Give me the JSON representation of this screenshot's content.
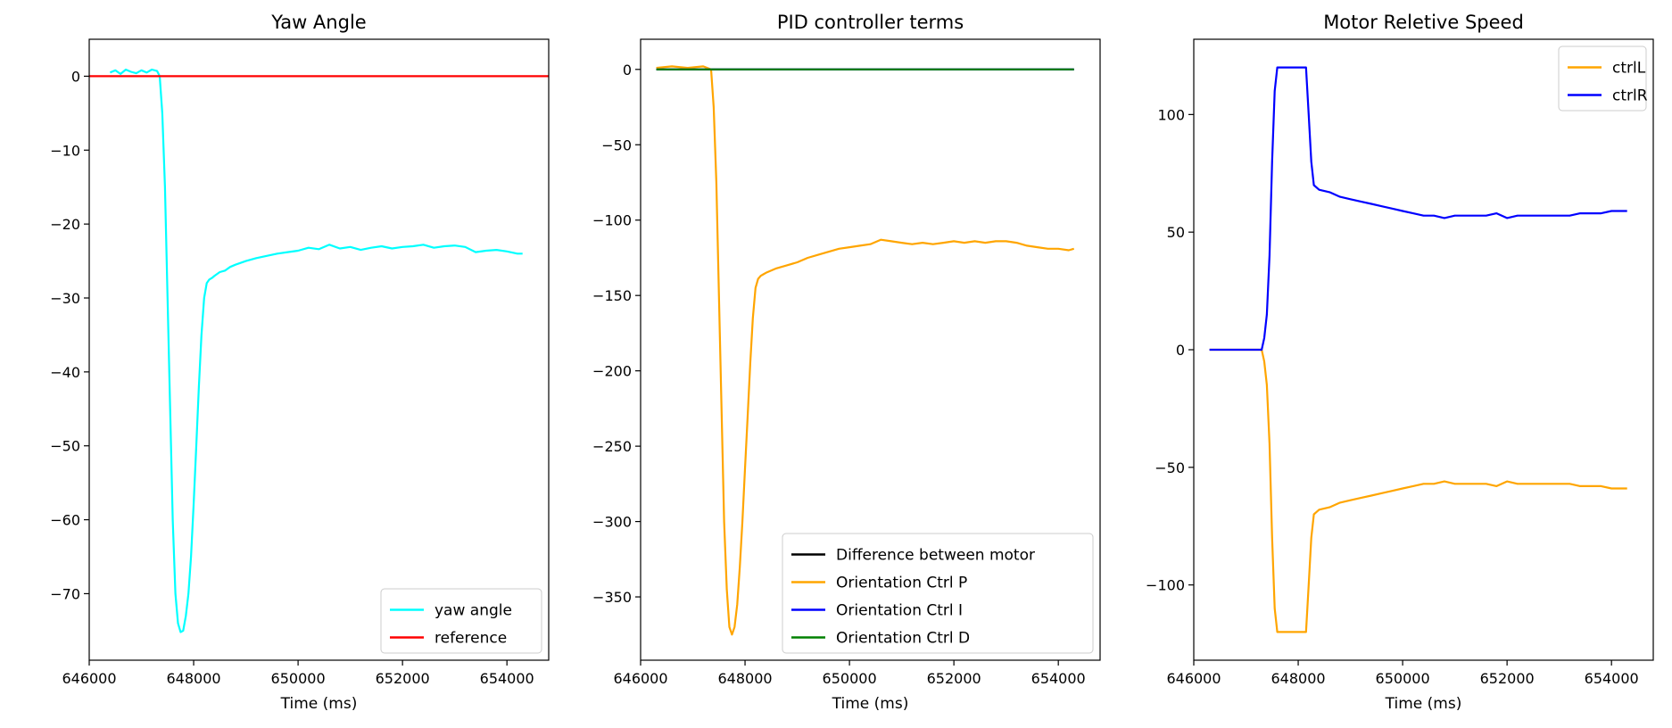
{
  "chart_data": [
    {
      "type": "line",
      "title": "Yaw Angle",
      "xlabel": "Time (ms)",
      "ylabel": "",
      "xlim": [
        646000,
        654800
      ],
      "ylim": [
        -79,
        5
      ],
      "xticks": [
        646000,
        648000,
        650000,
        652000,
        654000
      ],
      "xtick_labels": [
        "646000",
        "648000",
        "650000",
        "652000",
        "654000"
      ],
      "yticks": [
        0,
        -10,
        -20,
        -30,
        -40,
        -50,
        -60,
        -70
      ],
      "ytick_labels": [
        "0",
        "−10",
        "−20",
        "−30",
        "−40",
        "−50",
        "−60",
        "−70"
      ],
      "grid": false,
      "legend": "lower-right",
      "series": [
        {
          "name": "yaw angle",
          "color": "#00ffff",
          "x": [
            646400,
            646500,
            646600,
            646700,
            646800,
            646900,
            647000,
            647100,
            647200,
            647300,
            647350,
            647400,
            647450,
            647500,
            647550,
            647600,
            647650,
            647700,
            647750,
            647800,
            647850,
            647900,
            647950,
            648000,
            648050,
            648100,
            648150,
            648200,
            648250,
            648300,
            648350,
            648400,
            648500,
            648600,
            648700,
            648800,
            649000,
            649200,
            649400,
            649600,
            649800,
            650000,
            650200,
            650400,
            650600,
            650800,
            651000,
            651200,
            651400,
            651600,
            651800,
            652000,
            652200,
            652400,
            652600,
            652800,
            653000,
            653200,
            653400,
            653600,
            653800,
            654000,
            654200,
            654300
          ],
          "y": [
            0.5,
            0.8,
            0.3,
            0.9,
            0.6,
            0.4,
            0.8,
            0.5,
            0.9,
            0.7,
            0,
            -5,
            -15,
            -30,
            -45,
            -60,
            -70,
            -74,
            -75.2,
            -75,
            -73,
            -70,
            -65,
            -58,
            -50,
            -42,
            -35,
            -30,
            -28,
            -27.5,
            -27.3,
            -27,
            -26.5,
            -26.3,
            -25.8,
            -25.5,
            -25,
            -24.6,
            -24.3,
            -24,
            -23.8,
            -23.6,
            -23.2,
            -23.4,
            -22.8,
            -23.3,
            -23.1,
            -23.5,
            -23.2,
            -23.0,
            -23.3,
            -23.1,
            -23.0,
            -22.8,
            -23.2,
            -23.0,
            -22.9,
            -23.1,
            -23.8,
            -23.6,
            -23.5,
            -23.7,
            -24.0,
            -24.0
          ]
        },
        {
          "name": "reference",
          "color": "#ff0000",
          "x": [
            646000,
            654800
          ],
          "y": [
            0,
            0
          ]
        }
      ]
    },
    {
      "type": "line",
      "title": "PID controller terms",
      "xlabel": "Time (ms)",
      "ylabel": "",
      "xlim": [
        646000,
        654800
      ],
      "ylim": [
        -392,
        20
      ],
      "xticks": [
        646000,
        648000,
        650000,
        652000,
        654000
      ],
      "xtick_labels": [
        "646000",
        "648000",
        "650000",
        "652000",
        "654000"
      ],
      "yticks": [
        0,
        -50,
        -100,
        -150,
        -200,
        -250,
        -300,
        -350
      ],
      "ytick_labels": [
        "0",
        "−50",
        "−100",
        "−150",
        "−200",
        "−250",
        "−300",
        "−350"
      ],
      "grid": false,
      "legend": "lower-right",
      "series": [
        {
          "name": "Difference between motor",
          "color": "#000000",
          "x": [
            646300,
            654300
          ],
          "y": [
            0,
            0
          ]
        },
        {
          "name": "Orientation Ctrl P",
          "color": "#ffa500",
          "x": [
            646300,
            646600,
            646900,
            647200,
            647350,
            647400,
            647450,
            647500,
            647550,
            647600,
            647650,
            647700,
            647750,
            647800,
            647850,
            647900,
            647950,
            648000,
            648050,
            648100,
            648150,
            648200,
            648250,
            648300,
            648350,
            648400,
            648600,
            648800,
            649000,
            649200,
            649400,
            649600,
            649800,
            650000,
            650200,
            650400,
            650600,
            650800,
            651000,
            651200,
            651400,
            651600,
            651800,
            652000,
            652200,
            652400,
            652600,
            652800,
            653000,
            653200,
            653400,
            653600,
            653800,
            654000,
            654200,
            654300
          ],
          "y": [
            1,
            2,
            1,
            2,
            0,
            -25,
            -75,
            -150,
            -225,
            -300,
            -345,
            -370,
            -375,
            -370,
            -355,
            -330,
            -300,
            -265,
            -230,
            -195,
            -165,
            -145,
            -139,
            -137,
            -136,
            -135,
            -132,
            -130,
            -128,
            -125,
            -123,
            -121,
            -119,
            -118,
            -117,
            -116,
            -113,
            -114,
            -115,
            -116,
            -115,
            -116,
            -115,
            -114,
            -115,
            -114,
            -115,
            -114,
            -114,
            -115,
            -117,
            -118,
            -119,
            -119,
            -120,
            -119
          ]
        },
        {
          "name": "Orientation Ctrl I",
          "color": "#0000ff",
          "x": [
            646300,
            654300
          ],
          "y": [
            0,
            0
          ]
        },
        {
          "name": "Orientation Ctrl D",
          "color": "#008000",
          "x": [
            646300,
            654300
          ],
          "y": [
            0,
            0
          ]
        }
      ]
    },
    {
      "type": "line",
      "title": "Motor Reletive Speed",
      "xlabel": "Time (ms)",
      "ylabel": "",
      "xlim": [
        646000,
        654800
      ],
      "ylim": [
        -132,
        132
      ],
      "xticks": [
        646000,
        648000,
        650000,
        652000,
        654000
      ],
      "xtick_labels": [
        "646000",
        "648000",
        "650000",
        "652000",
        "654000"
      ],
      "yticks": [
        100,
        50,
        0,
        -50,
        -100
      ],
      "ytick_labels": [
        "100",
        "50",
        "0",
        "−50",
        "−100"
      ],
      "grid": false,
      "legend": "upper-right",
      "series": [
        {
          "name": "ctrlL",
          "color": "#ffa500",
          "x": [
            646300,
            646800,
            647300,
            647350,
            647400,
            647450,
            647500,
            647550,
            647600,
            648150,
            648200,
            648250,
            648300,
            648350,
            648400,
            648600,
            648800,
            649000,
            649200,
            649400,
            649600,
            649800,
            650000,
            650200,
            650400,
            650600,
            650800,
            651000,
            651200,
            651400,
            651600,
            651800,
            652000,
            652200,
            652400,
            652600,
            652800,
            653000,
            653200,
            653400,
            653600,
            653800,
            654000,
            654200,
            654300
          ],
          "y": [
            0,
            0,
            0,
            -5,
            -15,
            -40,
            -80,
            -110,
            -120,
            -120,
            -100,
            -80,
            -70,
            -69,
            -68,
            -67,
            -65,
            -64,
            -63,
            -62,
            -61,
            -60,
            -59,
            -58,
            -57,
            -57,
            -56,
            -57,
            -57,
            -57,
            -57,
            -58,
            -56,
            -57,
            -57,
            -57,
            -57,
            -57,
            -57,
            -58,
            -58,
            -58,
            -59,
            -59,
            -59
          ]
        },
        {
          "name": "ctrlR",
          "color": "#0000ff",
          "x": [
            646300,
            646800,
            647300,
            647350,
            647400,
            647450,
            647500,
            647550,
            647600,
            648150,
            648200,
            648250,
            648300,
            648350,
            648400,
            648600,
            648800,
            649000,
            649200,
            649400,
            649600,
            649800,
            650000,
            650200,
            650400,
            650600,
            650800,
            651000,
            651200,
            651400,
            651600,
            651800,
            652000,
            652200,
            652400,
            652600,
            652800,
            653000,
            653200,
            653400,
            653600,
            653800,
            654000,
            654200,
            654300
          ],
          "y": [
            0,
            0,
            0,
            5,
            15,
            40,
            80,
            110,
            120,
            120,
            100,
            80,
            70,
            69,
            68,
            67,
            65,
            64,
            63,
            62,
            61,
            60,
            59,
            58,
            57,
            57,
            56,
            57,
            57,
            57,
            57,
            58,
            56,
            57,
            57,
            57,
            57,
            57,
            57,
            58,
            58,
            58,
            59,
            59,
            59
          ]
        }
      ]
    }
  ]
}
